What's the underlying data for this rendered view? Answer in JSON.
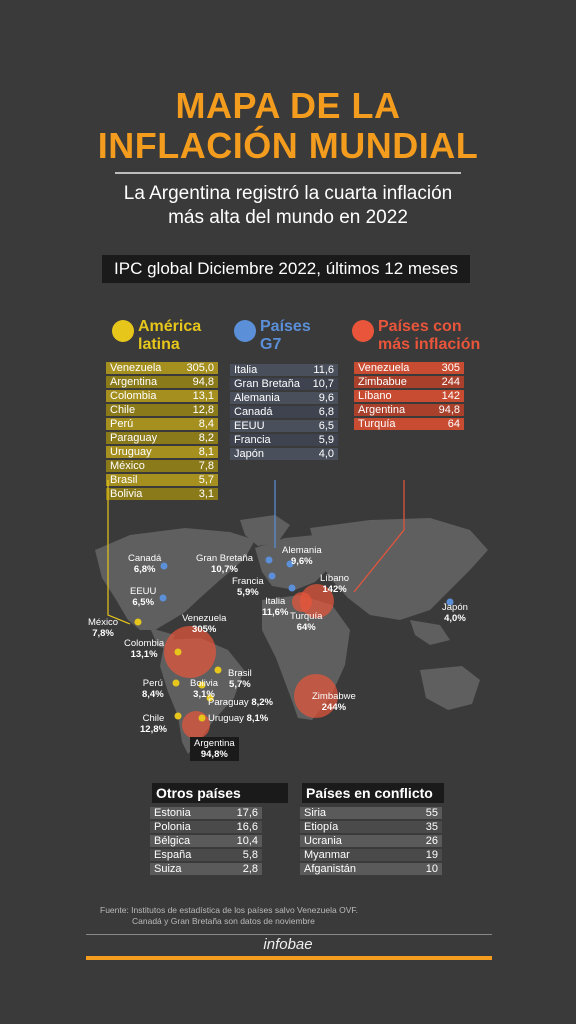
{
  "title_line1": "MAPA DE LA",
  "title_line2": "INFLACIÓN MUNDIAL",
  "subtitle_line1": "La Argentina registró la cuarta inflación",
  "subtitle_line2": "más alta del mundo en 2022",
  "ipc_label": "IPC global Diciembre 2022, últimos 12 meses",
  "colors": {
    "orange": "#f39c1e",
    "yellow": "#e7c61c",
    "blue": "#5b8fd8",
    "red": "#e8553a"
  },
  "groups": {
    "latam": {
      "title_line1": "América",
      "title_line2": "latina",
      "rows": [
        [
          "Venezuela",
          "305,0"
        ],
        [
          "Argentina",
          "94,8"
        ],
        [
          "Colombia",
          "13,1"
        ],
        [
          "Chile",
          "12,8"
        ],
        [
          "Perú",
          "8,4"
        ],
        [
          "Paraguay",
          "8,2"
        ],
        [
          "Uruguay",
          "8,1"
        ],
        [
          "México",
          "7,8"
        ],
        [
          "Brasil",
          "5,7"
        ],
        [
          "Bolivia",
          "3,1"
        ]
      ]
    },
    "g7": {
      "title_line1": "Países",
      "title_line2": "G7",
      "rows": [
        [
          "Italia",
          "11,6"
        ],
        [
          "Gran Bretaña",
          "10,7"
        ],
        [
          "Alemania",
          "9,6"
        ],
        [
          "Canadá",
          "6,8"
        ],
        [
          "EEUU",
          "6,5"
        ],
        [
          "Francia",
          "5,9"
        ],
        [
          "Japón",
          "4,0"
        ]
      ]
    },
    "inflacion": {
      "title_line1": "Países con",
      "title_line2": "más inflación",
      "rows": [
        [
          "Venezuela",
          "305"
        ],
        [
          "Zimbabue",
          "244"
        ],
        [
          "Líbano",
          "142"
        ],
        [
          "Argentina",
          "94,8"
        ],
        [
          "Turquía",
          "64"
        ]
      ]
    }
  },
  "map_labels": {
    "canada": {
      "name": "Canadá",
      "value": "6,8%"
    },
    "eeuu": {
      "name": "EEUU",
      "value": "6,5%"
    },
    "mexico": {
      "name": "México",
      "value": "7,8%"
    },
    "gran_bretana": {
      "name": "Gran Bretaña",
      "value": "10,7%"
    },
    "alemania": {
      "name": "Alemania",
      "value": "9,6%"
    },
    "francia": {
      "name": "Francia",
      "value": "5,9%"
    },
    "italia": {
      "name": "Italia",
      "value": "11,6%"
    },
    "libano": {
      "name": "Líbano",
      "value": "142%"
    },
    "turquia": {
      "name": "Turquía",
      "value": "64%"
    },
    "japon": {
      "name": "Japón",
      "value": "4,0%"
    },
    "venezuela": {
      "name": "Venezuela",
      "value": "305%"
    },
    "colombia": {
      "name": "Colombia",
      "value": "13,1%"
    },
    "peru": {
      "name": "Perú",
      "value": "8,4%"
    },
    "bolivia": {
      "name": "Bolivia",
      "value": "3,1%"
    },
    "brasil": {
      "name": "Brasil",
      "value": "5,7%"
    },
    "paraguay": {
      "name": "Paraguay",
      "value": "8,2%"
    },
    "uruguay": {
      "name": "Uruguay",
      "value": "8,1%"
    },
    "chile": {
      "name": "Chile",
      "value": "12,8%"
    },
    "zimbabwe": {
      "name": "Zimbabwe",
      "value": "244%"
    },
    "argentina": {
      "name": "Argentina",
      "value": "94,8%"
    }
  },
  "otros": {
    "title": "Otros países",
    "rows": [
      [
        "Estonia",
        "17,6"
      ],
      [
        "Polonia",
        "16,6"
      ],
      [
        "Bélgica",
        "10,4"
      ],
      [
        "España",
        "5,8"
      ],
      [
        "Suiza",
        "2,8"
      ]
    ]
  },
  "conflicto": {
    "title": "Países en conflicto",
    "rows": [
      [
        "Siria",
        "55"
      ],
      [
        "Etiopía",
        "35"
      ],
      [
        "Ucrania",
        "26"
      ],
      [
        "Myanmar",
        "19"
      ],
      [
        "Afganistán",
        "10"
      ]
    ]
  },
  "footer_line1": "Fuente: Institutos de estadística de los países salvo Venezuela OVF.",
  "footer_line2": "Canadá y Gran Bretaña son datos de noviembre",
  "brand": "infobae"
}
